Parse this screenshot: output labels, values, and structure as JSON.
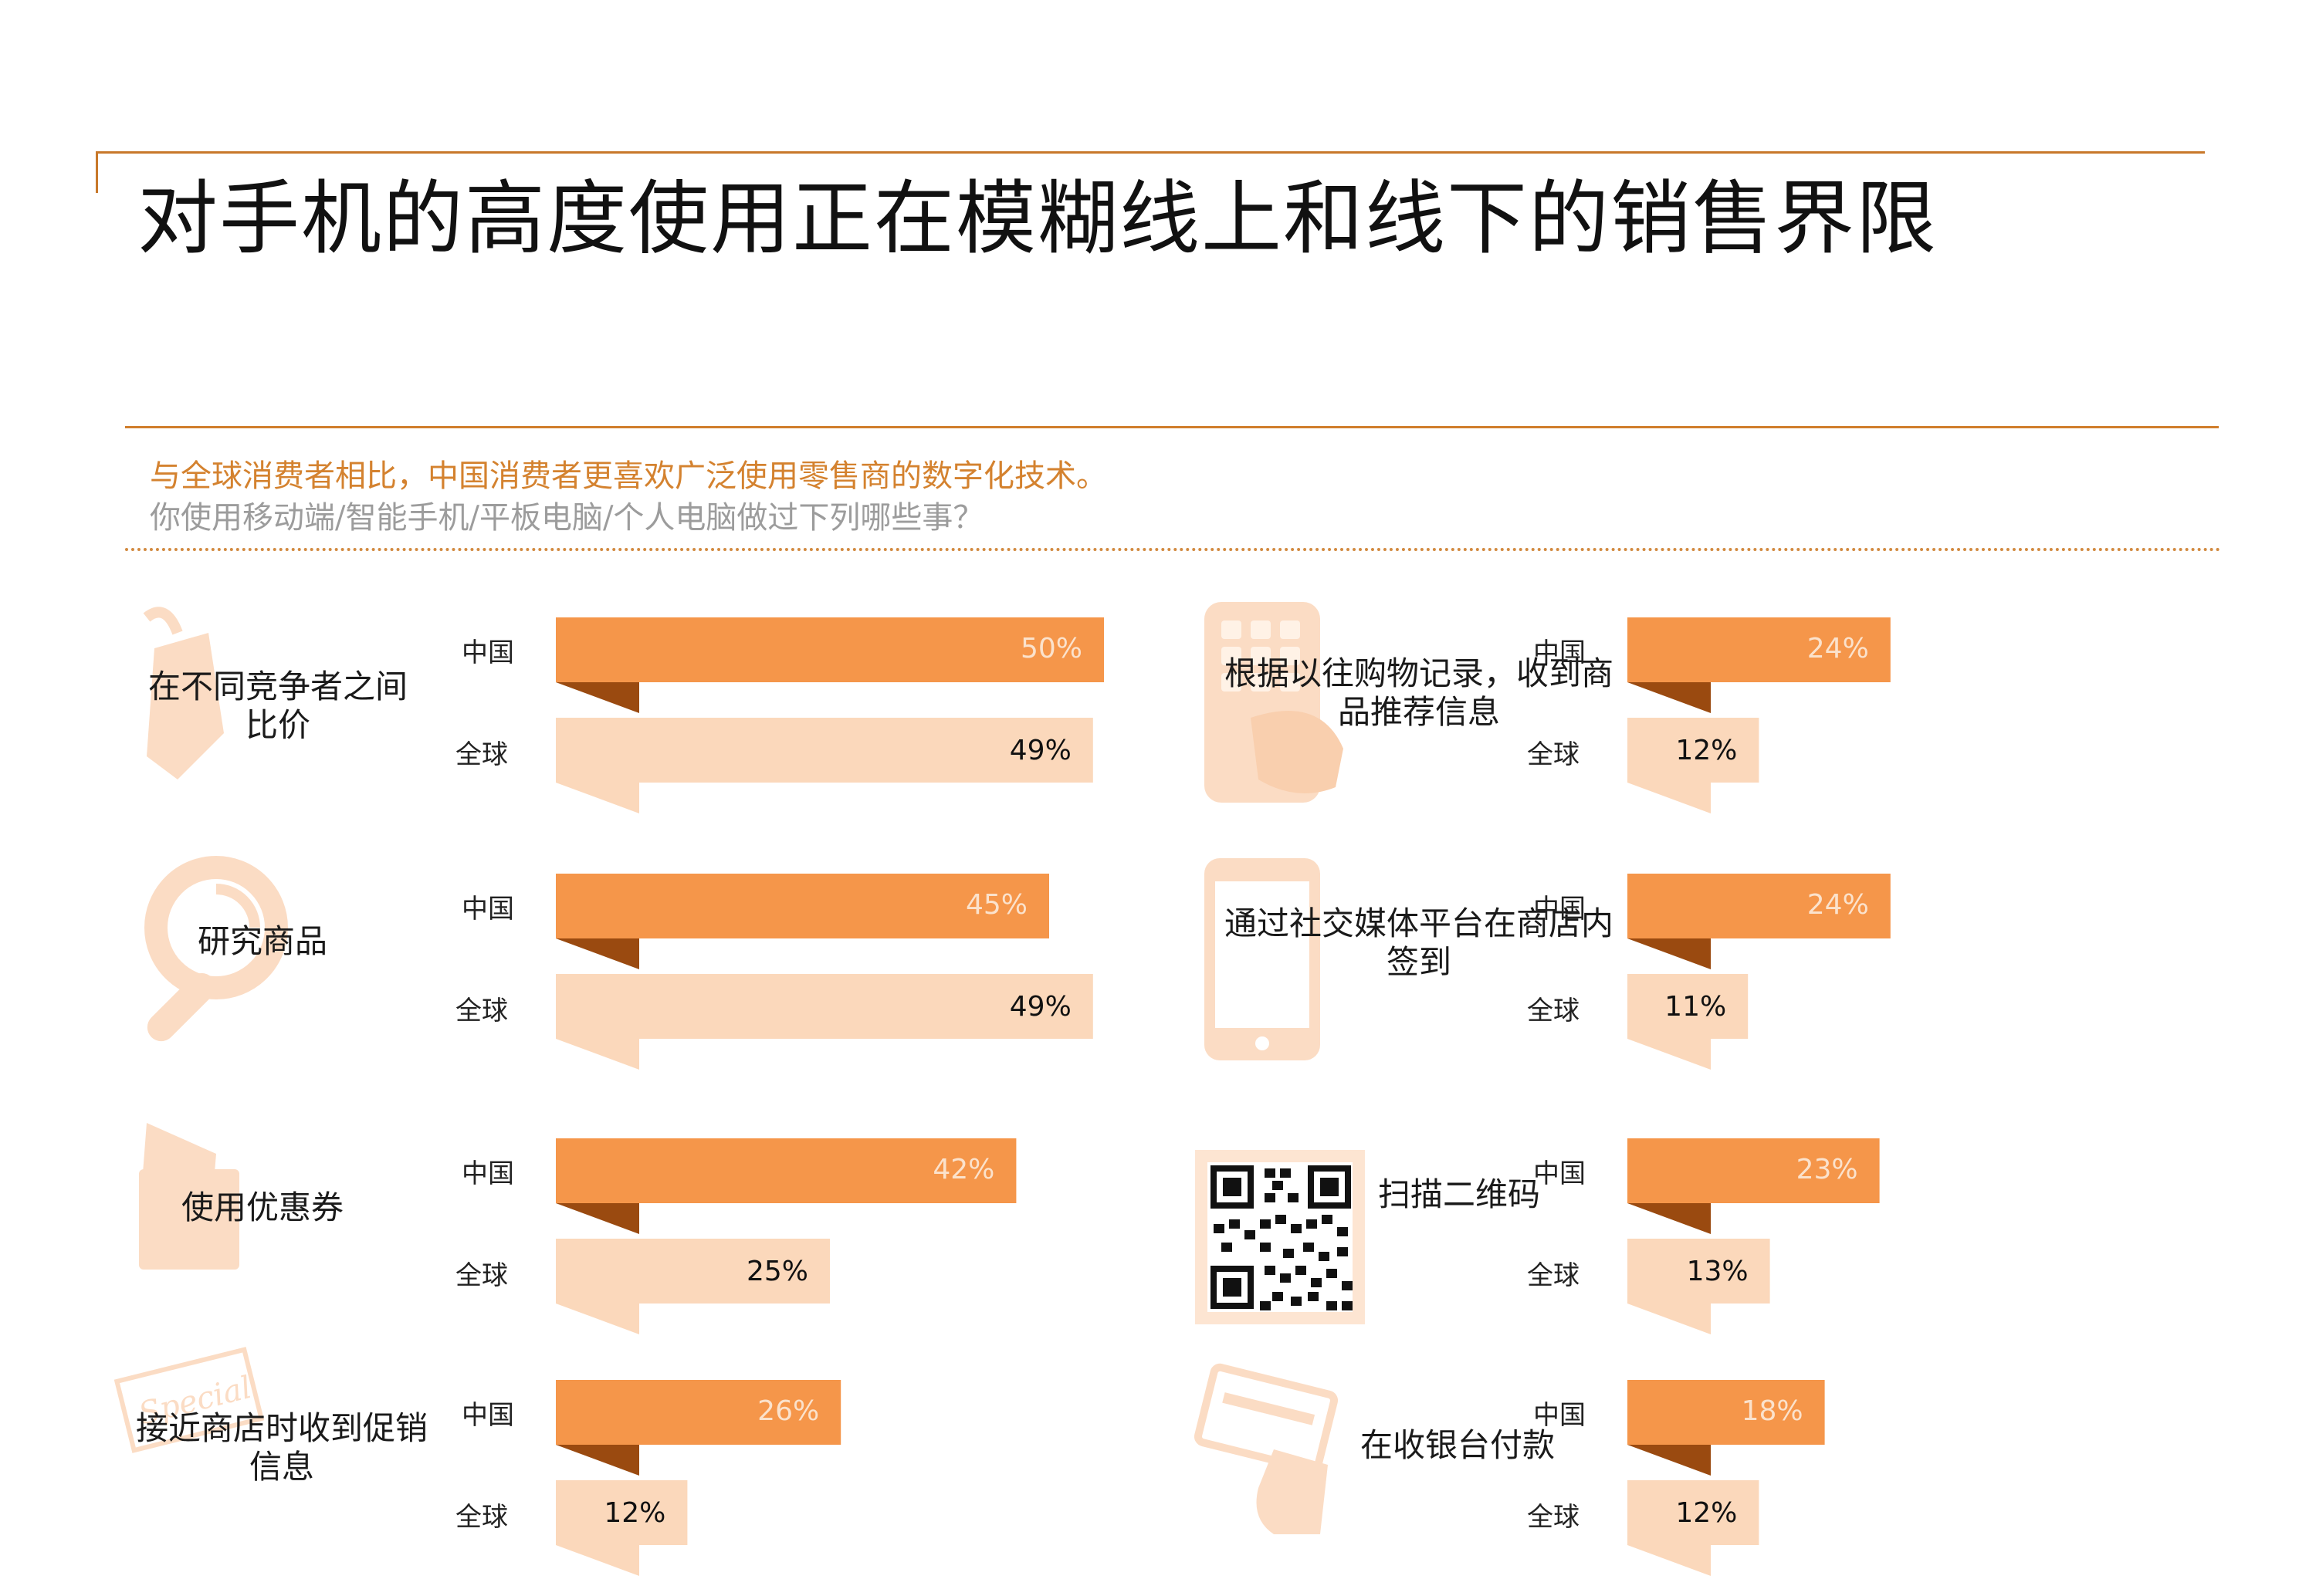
{
  "title": "对手机的高度使用正在模糊线上和线下的销售界限",
  "subtitle": "与全球消费者相比，中国消费者更喜欢广泛使用零售商的数字化技术。",
  "question": "你使用移动端/智能手机/平板电脑/个人电脑做过下列哪些事？",
  "series_labels": {
    "china": "中国",
    "global": "全球"
  },
  "colors": {
    "china": "#f5964a",
    "global": "#fbd8bb",
    "fold": "#9a4a10",
    "icon": "#fbdcc4"
  },
  "chart_data": {
    "type": "bar",
    "orientation": "horizontal",
    "value_unit": "%",
    "xlim": [
      0,
      50
    ],
    "series": [
      {
        "name": "中国",
        "values": [
          50,
          45,
          42,
          26,
          24,
          24,
          23,
          18
        ]
      },
      {
        "name": "全球",
        "values": [
          49,
          49,
          25,
          12,
          12,
          11,
          13,
          12
        ]
      }
    ],
    "categories": [
      "在不同竞争者之间比价",
      "研究商品",
      "使用优惠券",
      "接近商店时收到促销信息",
      "根据以往购物记录，收到商品推荐信息",
      "通过社交媒体平台在商店内签到",
      "扫描二维码",
      "在收银台付款"
    ],
    "items": [
      {
        "label_lines": [
          "在不同竞争者之间比价"
        ],
        "icon": "price-tag-icon",
        "china": 50,
        "global": 49,
        "china_label": "50%",
        "global_label": "49%"
      },
      {
        "label_lines": [
          "研究商品"
        ],
        "icon": "magnifier-icon",
        "china": 45,
        "global": 49,
        "china_label": "45%",
        "global_label": "49%"
      },
      {
        "label_lines": [
          "使用优惠券"
        ],
        "icon": "coupon-icon",
        "china": 42,
        "global": 25,
        "china_label": "42%",
        "global_label": "25%"
      },
      {
        "label_lines": [
          "接近商店时收到促销",
          "信息"
        ],
        "icon": "special-stamp-icon",
        "china": 26,
        "global": 12,
        "china_label": "26%",
        "global_label": "12%"
      },
      {
        "label_lines": [
          "根据以往购物记录，收到商",
          "品推荐信息"
        ],
        "icon": "tablet-hand-icon",
        "china": 24,
        "global": 12,
        "china_label": "24%",
        "global_label": "12%"
      },
      {
        "label_lines": [
          "通过社交媒体平台在商店内",
          "签到"
        ],
        "icon": "smartphone-icon",
        "china": 24,
        "global": 11,
        "china_label": "24%",
        "global_label": "11%"
      },
      {
        "label_lines": [
          "扫描二维码"
        ],
        "icon": "qr-code-icon",
        "china": 23,
        "global": 13,
        "china_label": "23%",
        "global_label": "13%"
      },
      {
        "label_lines": [
          "在收银台付款"
        ],
        "icon": "card-payment-icon",
        "china": 18,
        "global": 12,
        "china_label": "18%",
        "global_label": "12%"
      }
    ]
  }
}
